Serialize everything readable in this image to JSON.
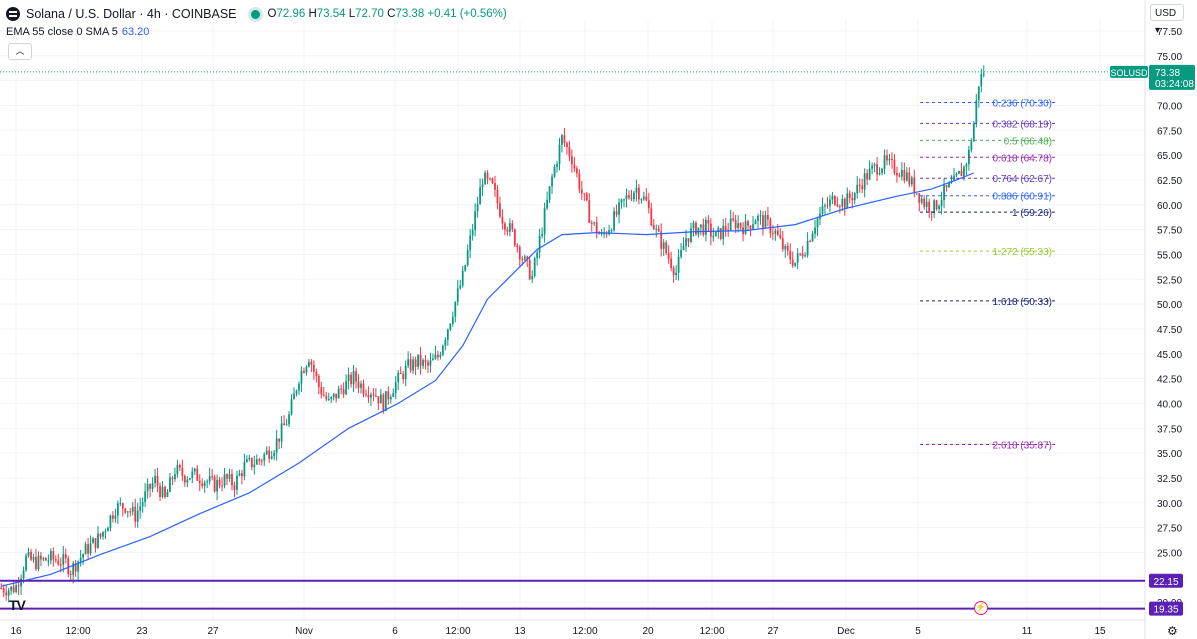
{
  "header": {
    "symbol": "Solana / U.S. Dollar · 4h · COINBASE",
    "ohlc": {
      "o": "72.96",
      "h": "73.54",
      "l": "72.70",
      "c": "73.38",
      "chg": "+0.41 (+0.56%)"
    }
  },
  "indicator": {
    "label": "EMA 55 close 0 SMA 5",
    "value": "63.20"
  },
  "currency": "USD",
  "collapse_icon": "chevron-up-icon",
  "bottom_icons": [
    "tradingview-logo-icon",
    "lightning-icon",
    "gear-icon"
  ],
  "colors": {
    "up": "#089981",
    "down": "#f23645",
    "ema": "#2962ff",
    "hline": "#5b21b6",
    "grid": "#f0f3fa"
  },
  "chart_data": {
    "type": "candlestick",
    "symbol": "SOLUSD",
    "timeframe": "4h",
    "y_ticks": [
      77.5,
      75,
      72.5,
      70,
      67.5,
      65,
      62.5,
      60,
      57.5,
      55,
      52.5,
      50,
      47.5,
      45,
      42.5,
      40,
      37.5,
      35,
      32.5,
      30,
      27.5,
      25,
      22.5,
      20
    ],
    "x_ticks": [
      "16",
      "12:00",
      "23",
      "27",
      "Nov",
      "6",
      "12:00",
      "13",
      "12:00",
      "20",
      "12:00",
      "27",
      "Dec",
      "5",
      "11",
      "15"
    ],
    "ylim": [
      18.2,
      78.6
    ],
    "last_price": {
      "label": "SOLUSD",
      "value": "73.38",
      "countdown": "03:24:08"
    },
    "horizontal_lines": [
      {
        "label": "22.15",
        "value": 22.15
      },
      {
        "label": "19.35",
        "value": 19.35
      }
    ],
    "fibonacci": [
      {
        "ratio": "0.236",
        "value": 70.3,
        "label": "0.236 (70.30)",
        "color": "#2962ff"
      },
      {
        "ratio": "0.382",
        "value": 68.19,
        "label": "0.382 (68.19)",
        "color": "#673ab7"
      },
      {
        "ratio": "0.5",
        "value": 66.48,
        "label": "0.5 (66.48)",
        "color": "#4caf50"
      },
      {
        "ratio": "0.618",
        "value": 64.78,
        "label": "0.618 (64.78)",
        "color": "#9c27b0"
      },
      {
        "ratio": "0.764",
        "value": 62.67,
        "label": "0.764 (62.67)",
        "color": "#673ab7"
      },
      {
        "ratio": "0.886",
        "value": 60.91,
        "label": "0.886 (60.91)",
        "color": "#2962ff"
      },
      {
        "ratio": "1",
        "value": 59.26,
        "label": "1 (59.26)",
        "color": "#1a237e"
      },
      {
        "ratio": "1.272",
        "value": 55.33,
        "label": "1.272 (55.33)",
        "color": "#9acd32"
      },
      {
        "ratio": "1.618",
        "value": 50.33,
        "label": "1.618 (50.33)",
        "color": "#1a237e"
      },
      {
        "ratio": "2.618",
        "value": 35.87,
        "label": "2.618 (35.87)",
        "color": "#9c27b0"
      }
    ],
    "price_path": [
      [
        0,
        21.4
      ],
      [
        4,
        21.3
      ],
      [
        6,
        21.6
      ],
      [
        10,
        24.4
      ],
      [
        14,
        24.0
      ],
      [
        20,
        24.4
      ],
      [
        26,
        24.0
      ],
      [
        28,
        23.2
      ],
      [
        34,
        25.2
      ],
      [
        40,
        26.6
      ],
      [
        46,
        29.5
      ],
      [
        50,
        29.7
      ],
      [
        54,
        28.7
      ],
      [
        58,
        30.7
      ],
      [
        62,
        32.3
      ],
      [
        66,
        30.3
      ],
      [
        70,
        33.3
      ],
      [
        74,
        32.7
      ],
      [
        78,
        32.8
      ],
      [
        82,
        32.3
      ],
      [
        86,
        31.8
      ],
      [
        90,
        32.4
      ],
      [
        94,
        31.9
      ],
      [
        98,
        33.7
      ],
      [
        104,
        34.3
      ],
      [
        110,
        35.7
      ],
      [
        116,
        38.7
      ],
      [
        120,
        42.7
      ],
      [
        124,
        44.8
      ],
      [
        128,
        41.7
      ],
      [
        132,
        40.0
      ],
      [
        138,
        41.7
      ],
      [
        142,
        42.6
      ],
      [
        146,
        41.6
      ],
      [
        150,
        41.2
      ],
      [
        154,
        40.0
      ],
      [
        158,
        41.7
      ],
      [
        164,
        43.7
      ],
      [
        168,
        44.2
      ],
      [
        172,
        43.7
      ],
      [
        176,
        44.7
      ],
      [
        180,
        47.7
      ],
      [
        186,
        52.7
      ],
      [
        190,
        57.7
      ],
      [
        194,
        62.7
      ],
      [
        198,
        61.7
      ],
      [
        202,
        58.7
      ],
      [
        206,
        57.1
      ],
      [
        210,
        54.7
      ],
      [
        214,
        52.7
      ],
      [
        218,
        57.7
      ],
      [
        222,
        62.7
      ],
      [
        226,
        66.7
      ],
      [
        230,
        64.7
      ],
      [
        234,
        61.2
      ],
      [
        238,
        58.2
      ],
      [
        242,
        56.7
      ],
      [
        246,
        58.2
      ],
      [
        252,
        60.7
      ],
      [
        256,
        61.7
      ],
      [
        260,
        60.2
      ],
      [
        264,
        57.2
      ],
      [
        268,
        55.2
      ],
      [
        272,
        53.2
      ],
      [
        276,
        56.7
      ],
      [
        280,
        57.7
      ],
      [
        284,
        57.7
      ],
      [
        288,
        56.7
      ],
      [
        292,
        57.7
      ],
      [
        296,
        58.2
      ],
      [
        300,
        57.7
      ],
      [
        304,
        58.7
      ],
      [
        308,
        58.2
      ],
      [
        312,
        57.2
      ],
      [
        316,
        55.2
      ],
      [
        320,
        54.2
      ],
      [
        324,
        55.7
      ],
      [
        328,
        58.2
      ],
      [
        332,
        59.7
      ],
      [
        336,
        60.7
      ],
      [
        340,
        60.2
      ],
      [
        344,
        61.2
      ],
      [
        348,
        62.7
      ],
      [
        352,
        63.7
      ],
      [
        356,
        64.2
      ],
      [
        360,
        63.7
      ],
      [
        364,
        63.2
      ],
      [
        368,
        61.7
      ],
      [
        372,
        60.2
      ],
      [
        376,
        59.7
      ],
      [
        380,
        61.2
      ],
      [
        384,
        62.2
      ],
      [
        388,
        63.7
      ],
      [
        390,
        65.2
      ],
      [
        392,
        68.2
      ],
      [
        394,
        72.3
      ],
      [
        396,
        73.4
      ]
    ],
    "ema_path": [
      [
        0,
        21.6
      ],
      [
        20,
        22.8
      ],
      [
        40,
        24.8
      ],
      [
        60,
        26.6
      ],
      [
        80,
        28.9
      ],
      [
        100,
        31.0
      ],
      [
        120,
        34.0
      ],
      [
        140,
        37.5
      ],
      [
        160,
        40.0
      ],
      [
        175,
        42.3
      ],
      [
        186,
        45.8
      ],
      [
        196,
        50.5
      ],
      [
        206,
        53.0
      ],
      [
        216,
        55.5
      ],
      [
        226,
        57.0
      ],
      [
        240,
        57.2
      ],
      [
        260,
        57.0
      ],
      [
        280,
        57.3
      ],
      [
        300,
        57.4
      ],
      [
        320,
        58.0
      ],
      [
        340,
        59.6
      ],
      [
        360,
        60.8
      ],
      [
        375,
        61.6
      ],
      [
        385,
        62.5
      ],
      [
        392,
        63.2
      ]
    ]
  }
}
